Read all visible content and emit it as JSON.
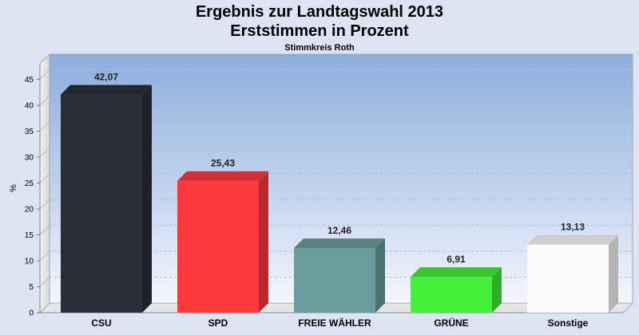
{
  "header": {
    "title": "Ergebnis zur Landtagswahl 2013",
    "subtitle": "Erststimmen in Prozent",
    "caption": "Stimmkreis Roth"
  },
  "chart_data": {
    "type": "bar",
    "categories": [
      "CSU",
      "SPD",
      "FREIE WÄHLER",
      "GRÜNE",
      "Sonstige"
    ],
    "values": [
      42.07,
      25.43,
      12.46,
      6.91,
      13.13
    ],
    "value_labels": [
      "42,07",
      "25,43",
      "12,46",
      "6,91",
      "13,13"
    ],
    "colors": [
      "#2a2e3a",
      "#ff3a3e",
      "#6a9e9c",
      "#44f03c",
      "#fafafa"
    ],
    "ylabel": "%",
    "ylim": [
      0,
      48
    ],
    "yticks": [
      0,
      5,
      10,
      15,
      20,
      25,
      30,
      35,
      40,
      45
    ],
    "grid": true,
    "legend": "none"
  }
}
